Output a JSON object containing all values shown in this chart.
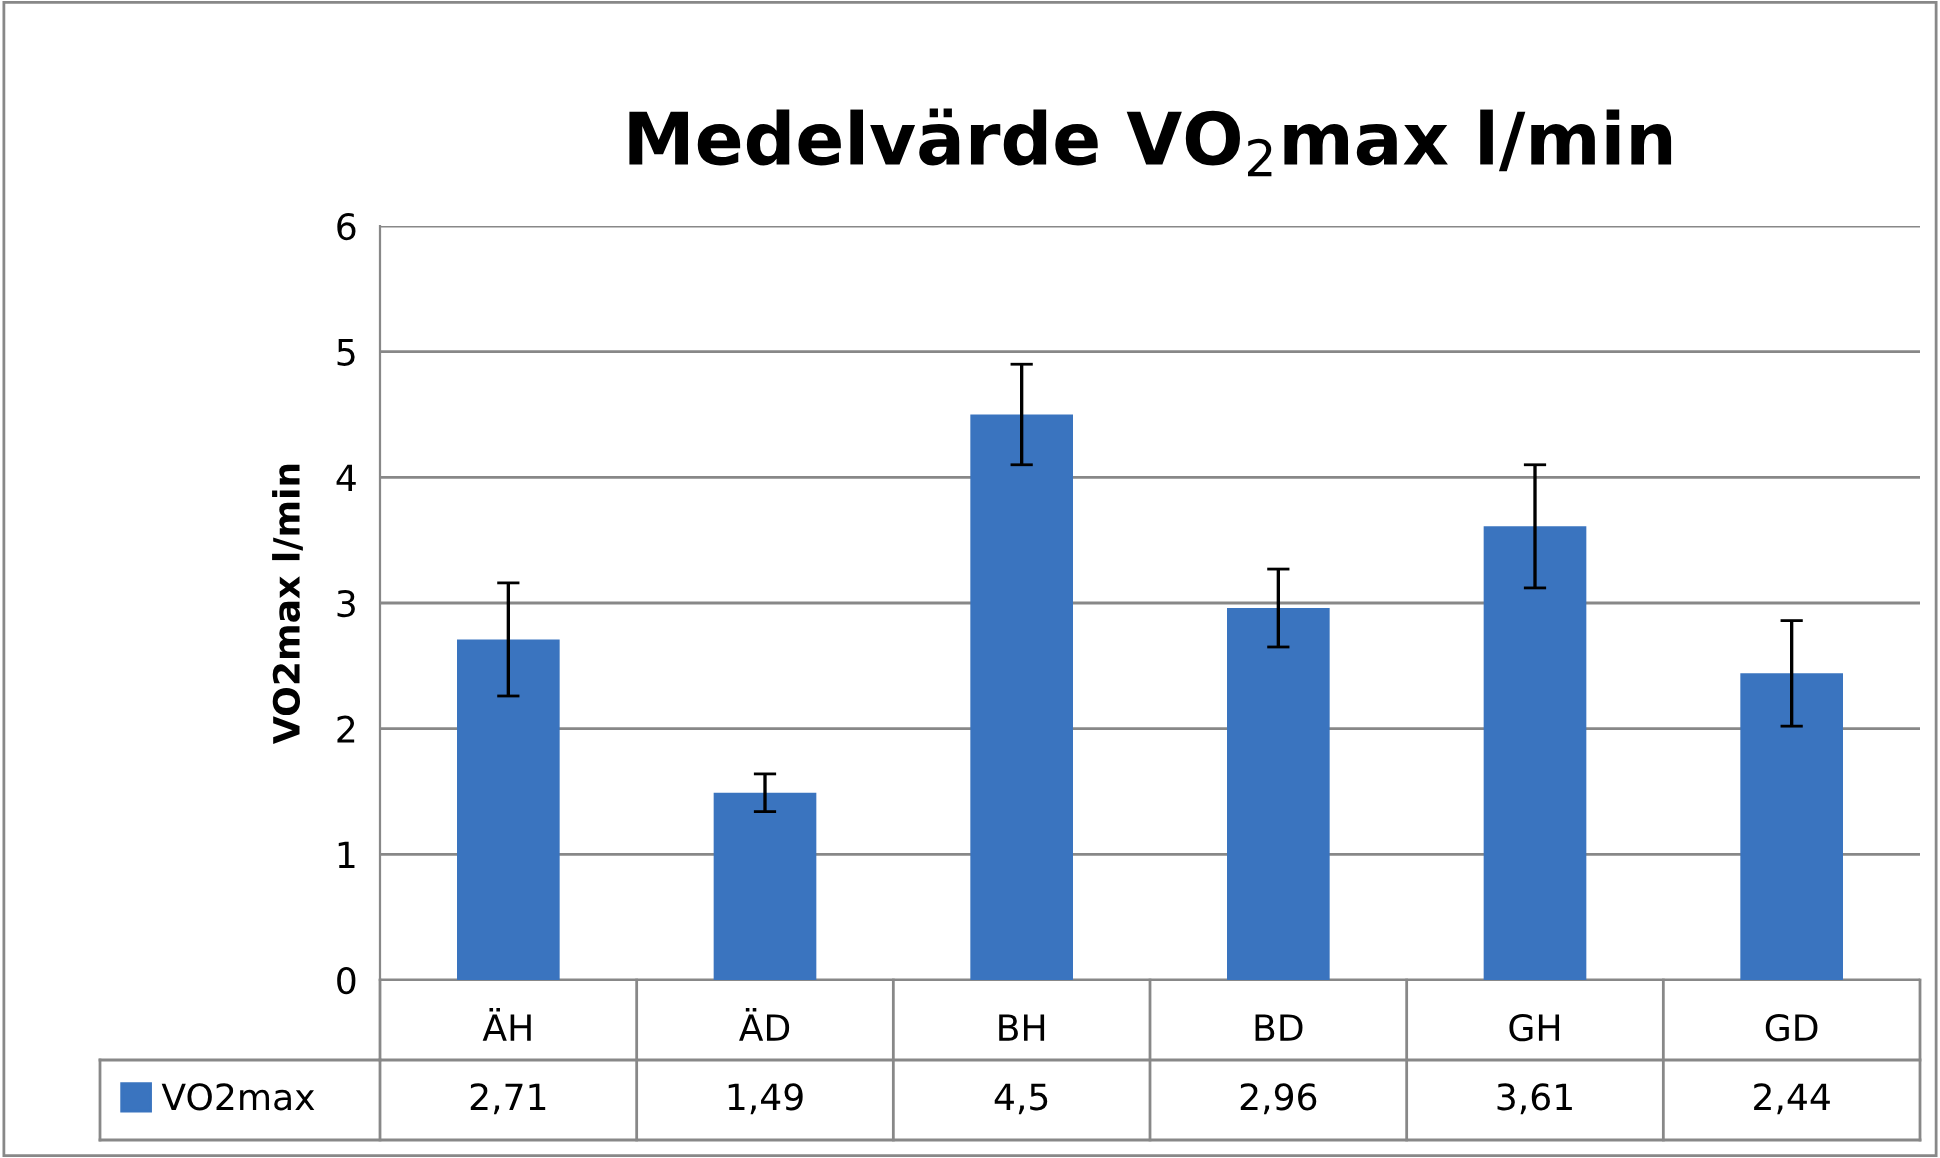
{
  "chart_data": {
    "type": "bar",
    "title": "Medelvärde VO$_{2}$max l/min",
    "ylabel": "VO2max l/min",
    "categories": [
      "ÄH",
      "ÄD",
      "BH",
      "BD",
      "GH",
      "GD"
    ],
    "series": [
      {
        "name": "VO2max",
        "color": "#3a74bf",
        "values": [
          2.71,
          1.49,
          4.5,
          2.96,
          3.61,
          2.44
        ],
        "errors": [
          0.45,
          0.15,
          0.4,
          0.31,
          0.49,
          0.42
        ],
        "value_labels": [
          "2,71",
          "1,49",
          "4,5",
          "2,96",
          "3,61",
          "2,44"
        ]
      }
    ],
    "ylim": [
      0,
      6
    ],
    "yticks": [
      0,
      1,
      2,
      3,
      4,
      5,
      6
    ],
    "grid": "y",
    "legend": "bottom"
  }
}
